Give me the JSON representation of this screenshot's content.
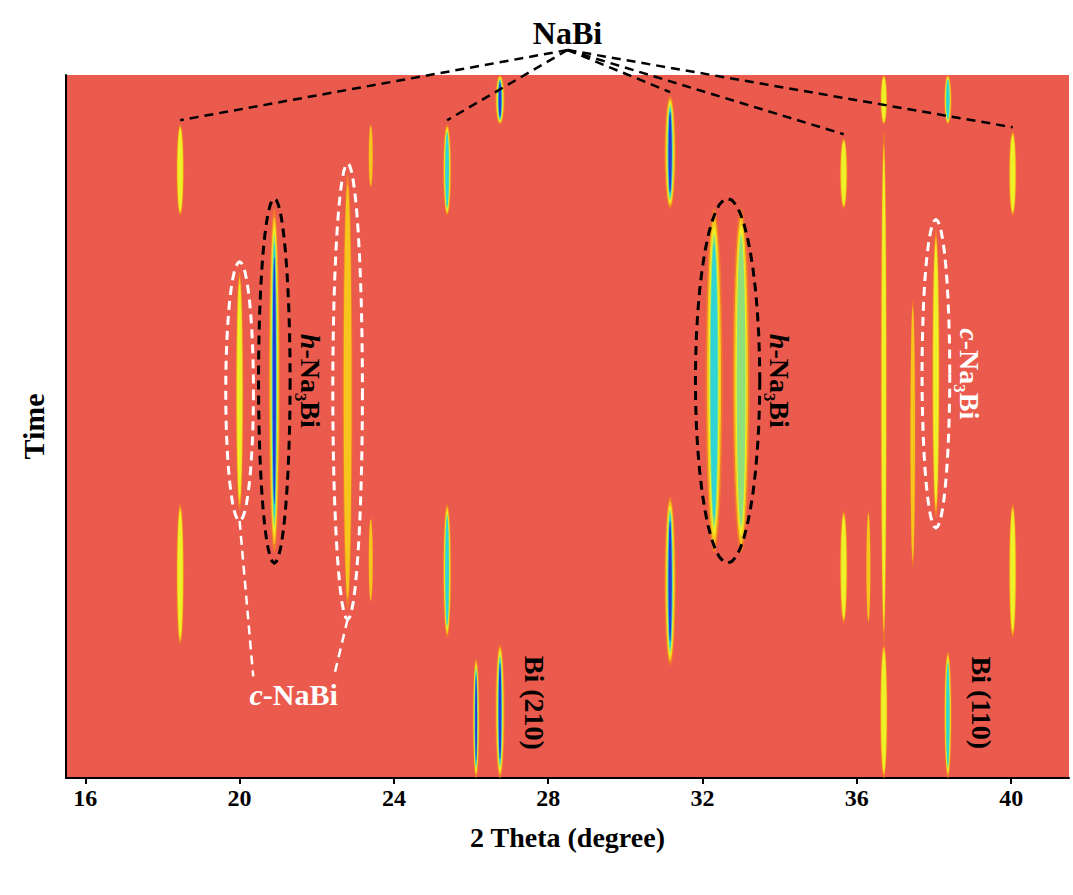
{
  "chart_data": {
    "type": "heatmap",
    "x_label": "2 Theta (degree)",
    "y_label": "Time",
    "xlim": [
      15.5,
      41.5
    ],
    "xticks": [
      16,
      20,
      24,
      28,
      32,
      36,
      40
    ],
    "ylim": [
      0,
      100
    ],
    "tick_labels": "x",
    "grid": false,
    "peaks": [
      {
        "two_theta": 26.13,
        "time_start": 0,
        "time_end": 17,
        "width": 0.18,
        "intensity": 90
      },
      {
        "two_theta": 26.75,
        "time_start": 0,
        "time_end": 19,
        "width": 0.25,
        "intensity": 95
      },
      {
        "two_theta": 36.7,
        "time_start": 0,
        "time_end": 19,
        "width": 0.2,
        "intensity": 55
      },
      {
        "two_theta": 38.36,
        "time_start": 0,
        "time_end": 18,
        "width": 0.2,
        "intensity": 80
      },
      {
        "two_theta": 18.46,
        "time_start": 19,
        "time_end": 39,
        "width": 0.2,
        "intensity": 50
      },
      {
        "two_theta": 23.4,
        "time_start": 25,
        "time_end": 37,
        "width": 0.12,
        "intensity": 30
      },
      {
        "two_theta": 25.38,
        "time_start": 20,
        "time_end": 39,
        "width": 0.22,
        "intensity": 75
      },
      {
        "two_theta": 31.16,
        "time_start": 16,
        "time_end": 40,
        "width": 0.3,
        "intensity": 95
      },
      {
        "two_theta": 35.66,
        "time_start": 22,
        "time_end": 38,
        "width": 0.2,
        "intensity": 55
      },
      {
        "two_theta": 36.3,
        "time_start": 22,
        "time_end": 38,
        "width": 0.12,
        "intensity": 35
      },
      {
        "two_theta": 40.04,
        "time_start": 20,
        "time_end": 39,
        "width": 0.2,
        "intensity": 55
      },
      {
        "two_theta": 36.7,
        "time_start": 19,
        "time_end": 92,
        "width": 0.16,
        "intensity": 45
      },
      {
        "two_theta": 37.45,
        "time_start": 30,
        "time_end": 68,
        "width": 0.14,
        "intensity": 40
      },
      {
        "two_theta": 20.9,
        "time_start": 32,
        "time_end": 81,
        "width": 0.3,
        "intensity": 85
      },
      {
        "two_theta": 32.3,
        "time_start": 32,
        "time_end": 81,
        "width": 0.45,
        "intensity": 75
      },
      {
        "two_theta": 33.0,
        "time_start": 32,
        "time_end": 81,
        "width": 0.45,
        "intensity": 65
      },
      {
        "two_theta": 20.0,
        "time_start": 38,
        "time_end": 72,
        "width": 0.2,
        "intensity": 50
      },
      {
        "two_theta": 22.8,
        "time_start": 24,
        "time_end": 86,
        "width": 0.25,
        "intensity": 40
      },
      {
        "two_theta": 38.05,
        "time_start": 37,
        "time_end": 78,
        "width": 0.2,
        "intensity": 50
      },
      {
        "two_theta": 18.46,
        "time_start": 80,
        "time_end": 93,
        "width": 0.2,
        "intensity": 55
      },
      {
        "two_theta": 23.4,
        "time_start": 84,
        "time_end": 93,
        "width": 0.12,
        "intensity": 30
      },
      {
        "two_theta": 25.38,
        "time_start": 80,
        "time_end": 93,
        "width": 0.22,
        "intensity": 70
      },
      {
        "two_theta": 31.16,
        "time_start": 81,
        "time_end": 97,
        "width": 0.3,
        "intensity": 95
      },
      {
        "two_theta": 35.66,
        "time_start": 81,
        "time_end": 91,
        "width": 0.2,
        "intensity": 55
      },
      {
        "two_theta": 40.04,
        "time_start": 80,
        "time_end": 92,
        "width": 0.2,
        "intensity": 55
      },
      {
        "two_theta": 26.75,
        "time_start": 93,
        "time_end": 100,
        "width": 0.25,
        "intensity": 95
      },
      {
        "two_theta": 36.7,
        "time_start": 93,
        "time_end": 100,
        "width": 0.18,
        "intensity": 55
      },
      {
        "two_theta": 38.36,
        "time_start": 93,
        "time_end": 100,
        "width": 0.2,
        "intensity": 80
      }
    ],
    "annotations": [
      {
        "text": "NaBi",
        "type": "leader",
        "marks": [
          18.46,
          25.38,
          31.16,
          35.66,
          40.04
        ],
        "color": "#000000",
        "line_style": "dashed"
      },
      {
        "text": "h-Na₃Bi",
        "type": "ellipse",
        "marks": [
          20.9
        ],
        "color": "#000000",
        "line_style": "dashed"
      },
      {
        "text": "h-Na₃Bi",
        "type": "ellipse",
        "marks": [
          32.3,
          33.0
        ],
        "color": "#000000",
        "line_style": "dashed"
      },
      {
        "text": "c-Na₃Bi",
        "type": "ellipse",
        "marks": [
          38.05
        ],
        "color": "#ffffff",
        "line_style": "dashed"
      },
      {
        "text": "c-NaBi",
        "type": "ellipse",
        "marks": [
          20.0,
          22.8
        ],
        "color": "#ffffff",
        "line_style": "dashed"
      },
      {
        "text": "Bi (210)",
        "type": "label",
        "marks": [
          26.75
        ],
        "color": "#000000"
      },
      {
        "text": "Bi (110)",
        "type": "label",
        "marks": [
          38.36
        ],
        "color": "#000000"
      }
    ]
  }
}
